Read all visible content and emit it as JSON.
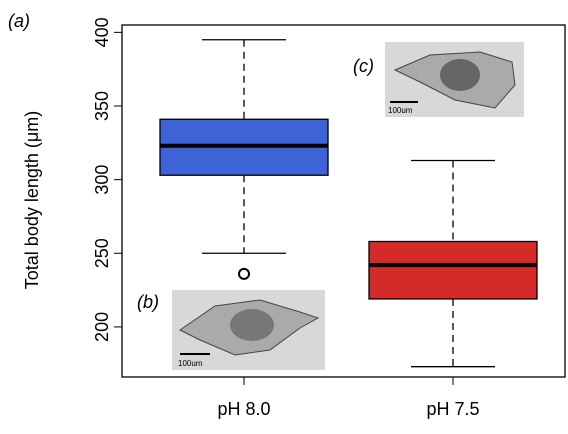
{
  "chart_data": {
    "type": "boxplot",
    "title": "(a)",
    "ylabel": "Total body length (μm)",
    "categories": [
      "pH 8.0",
      "pH 7.5"
    ],
    "colors": [
      "#3d63d6",
      "#d42a2a"
    ],
    "boxes": [
      {
        "whisker_low": 250,
        "q1": 303,
        "median": 323,
        "q3": 341,
        "whisker_high": 395,
        "outliers": [
          236
        ]
      },
      {
        "whisker_low": 173,
        "q1": 219,
        "median": 242,
        "q3": 258,
        "whisker_high": 313,
        "outliers": []
      }
    ],
    "ylim": [
      166,
      405
    ],
    "yticks": [
      200,
      250,
      300,
      350,
      400
    ],
    "insets": [
      {
        "label": "(b)",
        "scale": "100um"
      },
      {
        "label": "(c)",
        "scale": "100um"
      }
    ]
  }
}
